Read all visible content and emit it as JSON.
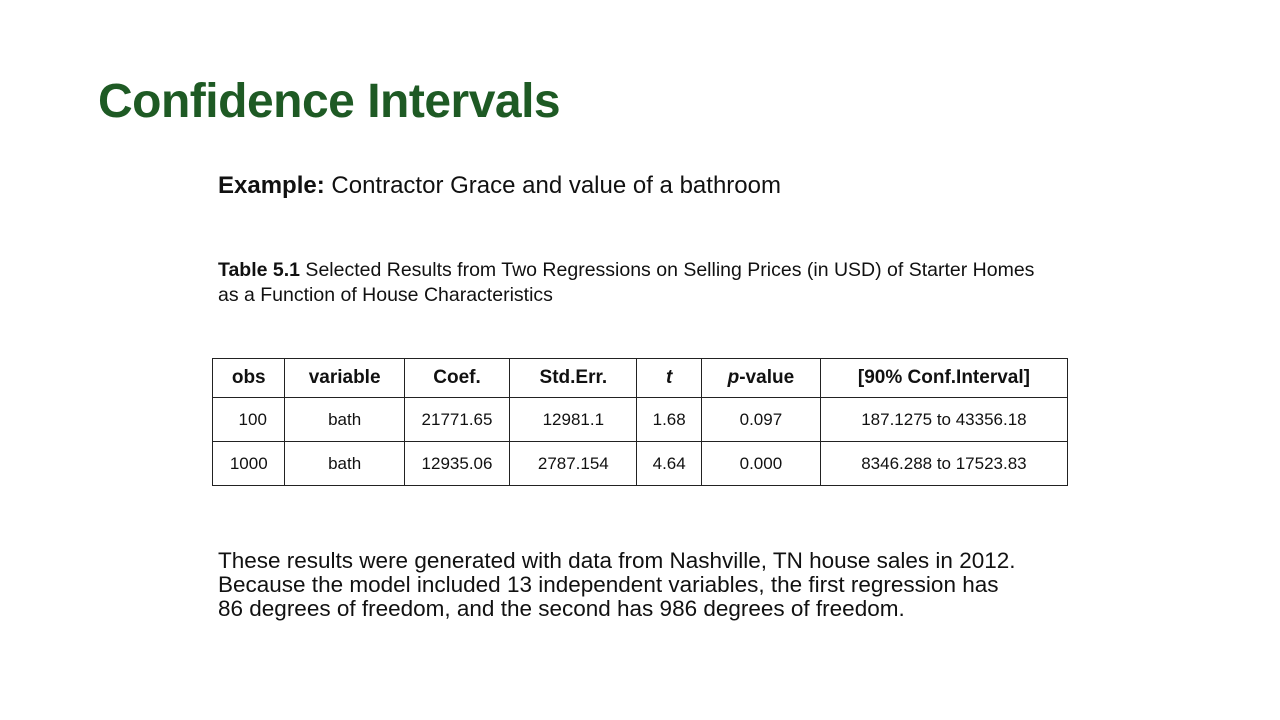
{
  "title": "Confidence Intervals",
  "example": {
    "label": "Example:",
    "text": " Contractor Grace and value of a bathroom"
  },
  "caption": {
    "label": "Table 5.1",
    "text": " Selected Results from Two Regressions on Selling Prices (in USD) of Starter Homes as a Function of House Characteristics"
  },
  "table": {
    "headers": {
      "obs": "obs",
      "variable": "variable",
      "coef": "Coef.",
      "stderr": "Std.Err.",
      "t": "t",
      "p_italic": "p",
      "p_rest": "-value",
      "ci": "[90% Conf.Interval]"
    },
    "rows": [
      {
        "obs": "100",
        "variable": "bath",
        "coef": "21771.65",
        "stderr": "12981.1",
        "t": "1.68",
        "p": "0.097",
        "ci": "187.1275 to 43356.18"
      },
      {
        "obs": "1000",
        "variable": "bath",
        "coef": "12935.06",
        "stderr": "2787.154",
        "t": "4.64",
        "p": "0.000",
        "ci": "8346.288 to 17523.83"
      }
    ]
  },
  "note": {
    "line1": "These results were generated with data from Nashville, TN house sales in 2012.",
    "line2": "Because the model included 13 independent variables, the first regression has",
    "line3": "86 degrees of freedom, and the second has 986 degrees of freedom."
  },
  "colors": {
    "title": "#1e5a24",
    "text": "#111111",
    "border": "#222222"
  }
}
